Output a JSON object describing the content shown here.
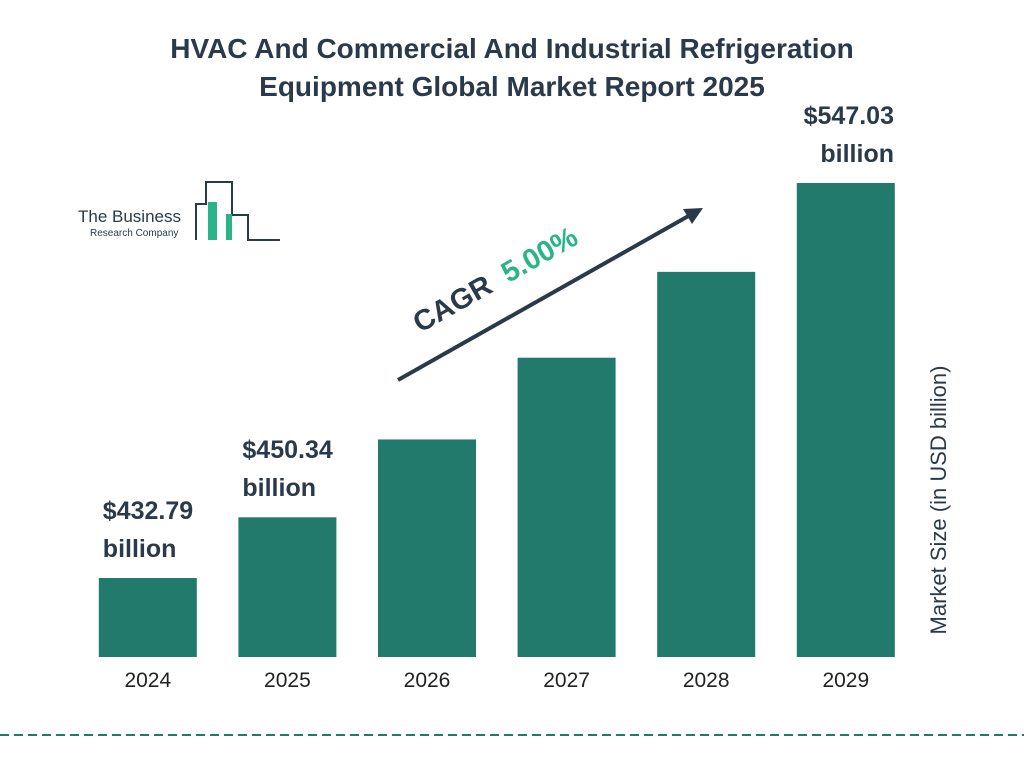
{
  "chart_data": {
    "type": "bar",
    "title": "HVAC And Commercial And Industrial Refrigeration Equipment Global Market Report 2025",
    "categories": [
      "2024",
      "2025",
      "2026",
      "2027",
      "2028",
      "2029"
    ],
    "values": [
      432.79,
      450.34,
      472.86,
      496.5,
      521.33,
      547.03
    ],
    "value_labels": [
      "$432.79 billion",
      "$450.34 billion",
      null,
      null,
      null,
      "$547.03 billion"
    ],
    "color": "#217a6b",
    "y_label": "Market Size (in USD billion)",
    "cagr_label": "CAGR",
    "cagr_value": "5.00%"
  },
  "logo": {
    "line1": "The Business",
    "line2": "Research Company"
  }
}
